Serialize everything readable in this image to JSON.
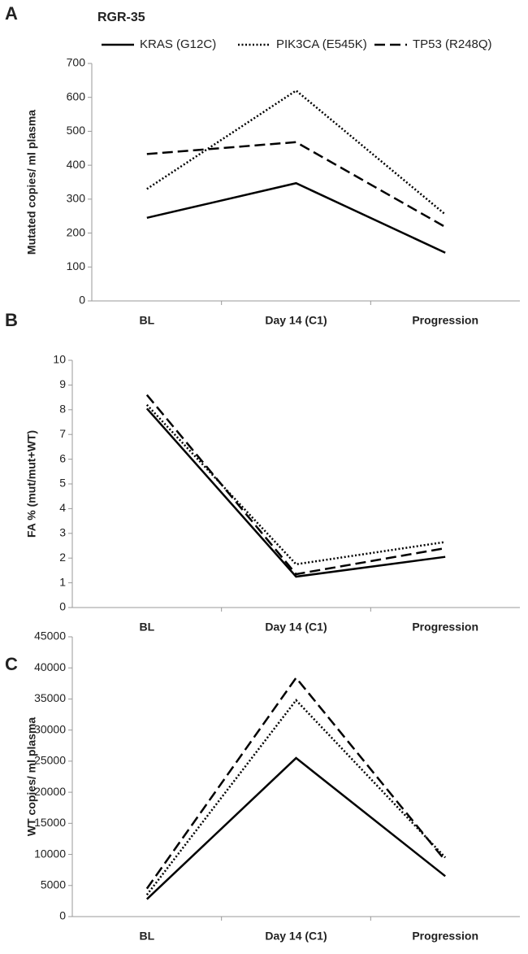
{
  "chart_data": [
    {
      "type": "line",
      "panel_label": "A",
      "title": "RGR-35",
      "y_label": "Mutated copies/ ml plasma",
      "categories": [
        "BL",
        "Day 14 (C1)",
        "Progression"
      ],
      "ylim": [
        0,
        700
      ],
      "yticks": [
        0,
        100,
        200,
        300,
        400,
        500,
        600,
        700
      ],
      "legend": "top",
      "series": [
        {
          "name": "KRAS (G12C)",
          "color": "#000000",
          "dash": "solid",
          "values": [
            245,
            347,
            142
          ]
        },
        {
          "name": "PIK3CA (E545K)",
          "color": "#000000",
          "dash": "dotted",
          "values": [
            330,
            620,
            255
          ]
        },
        {
          "name": "TP53 (R248Q)",
          "color": "#000000",
          "dash": "dashed",
          "values": [
            433,
            468,
            218
          ]
        }
      ]
    },
    {
      "type": "line",
      "panel_label": "B",
      "y_label": "FA % (mut/mut+WT)",
      "categories": [
        "BL",
        "Day 14 (C1)",
        "Progression"
      ],
      "ylim": [
        0,
        10
      ],
      "yticks": [
        0,
        1,
        2,
        3,
        4,
        5,
        6,
        7,
        8,
        9,
        10
      ],
      "series": [
        {
          "color": "#000000",
          "dash": "solid",
          "values": [
            8.05,
            1.25,
            2.05
          ]
        },
        {
          "color": "#000000",
          "dash": "dotted",
          "values": [
            8.2,
            1.75,
            2.65
          ]
        },
        {
          "color": "#000000",
          "dash": "dashed",
          "values": [
            8.6,
            1.35,
            2.4
          ]
        }
      ]
    },
    {
      "type": "line",
      "panel_label": "C",
      "y_label": "WT copies/ ml plasma",
      "categories": [
        "BL",
        "Day 14 (C1)",
        "Progression"
      ],
      "ylim": [
        0,
        45000
      ],
      "yticks": [
        0,
        5000,
        10000,
        15000,
        20000,
        25000,
        30000,
        35000,
        40000,
        45000
      ],
      "series": [
        {
          "color": "#000000",
          "dash": "solid",
          "values": [
            2800,
            25500,
            6500
          ]
        },
        {
          "color": "#000000",
          "dash": "dotted",
          "values": [
            3500,
            34800,
            9500
          ]
        },
        {
          "color": "#000000",
          "dash": "dashed",
          "values": [
            4500,
            38400,
            9000
          ]
        }
      ]
    }
  ]
}
